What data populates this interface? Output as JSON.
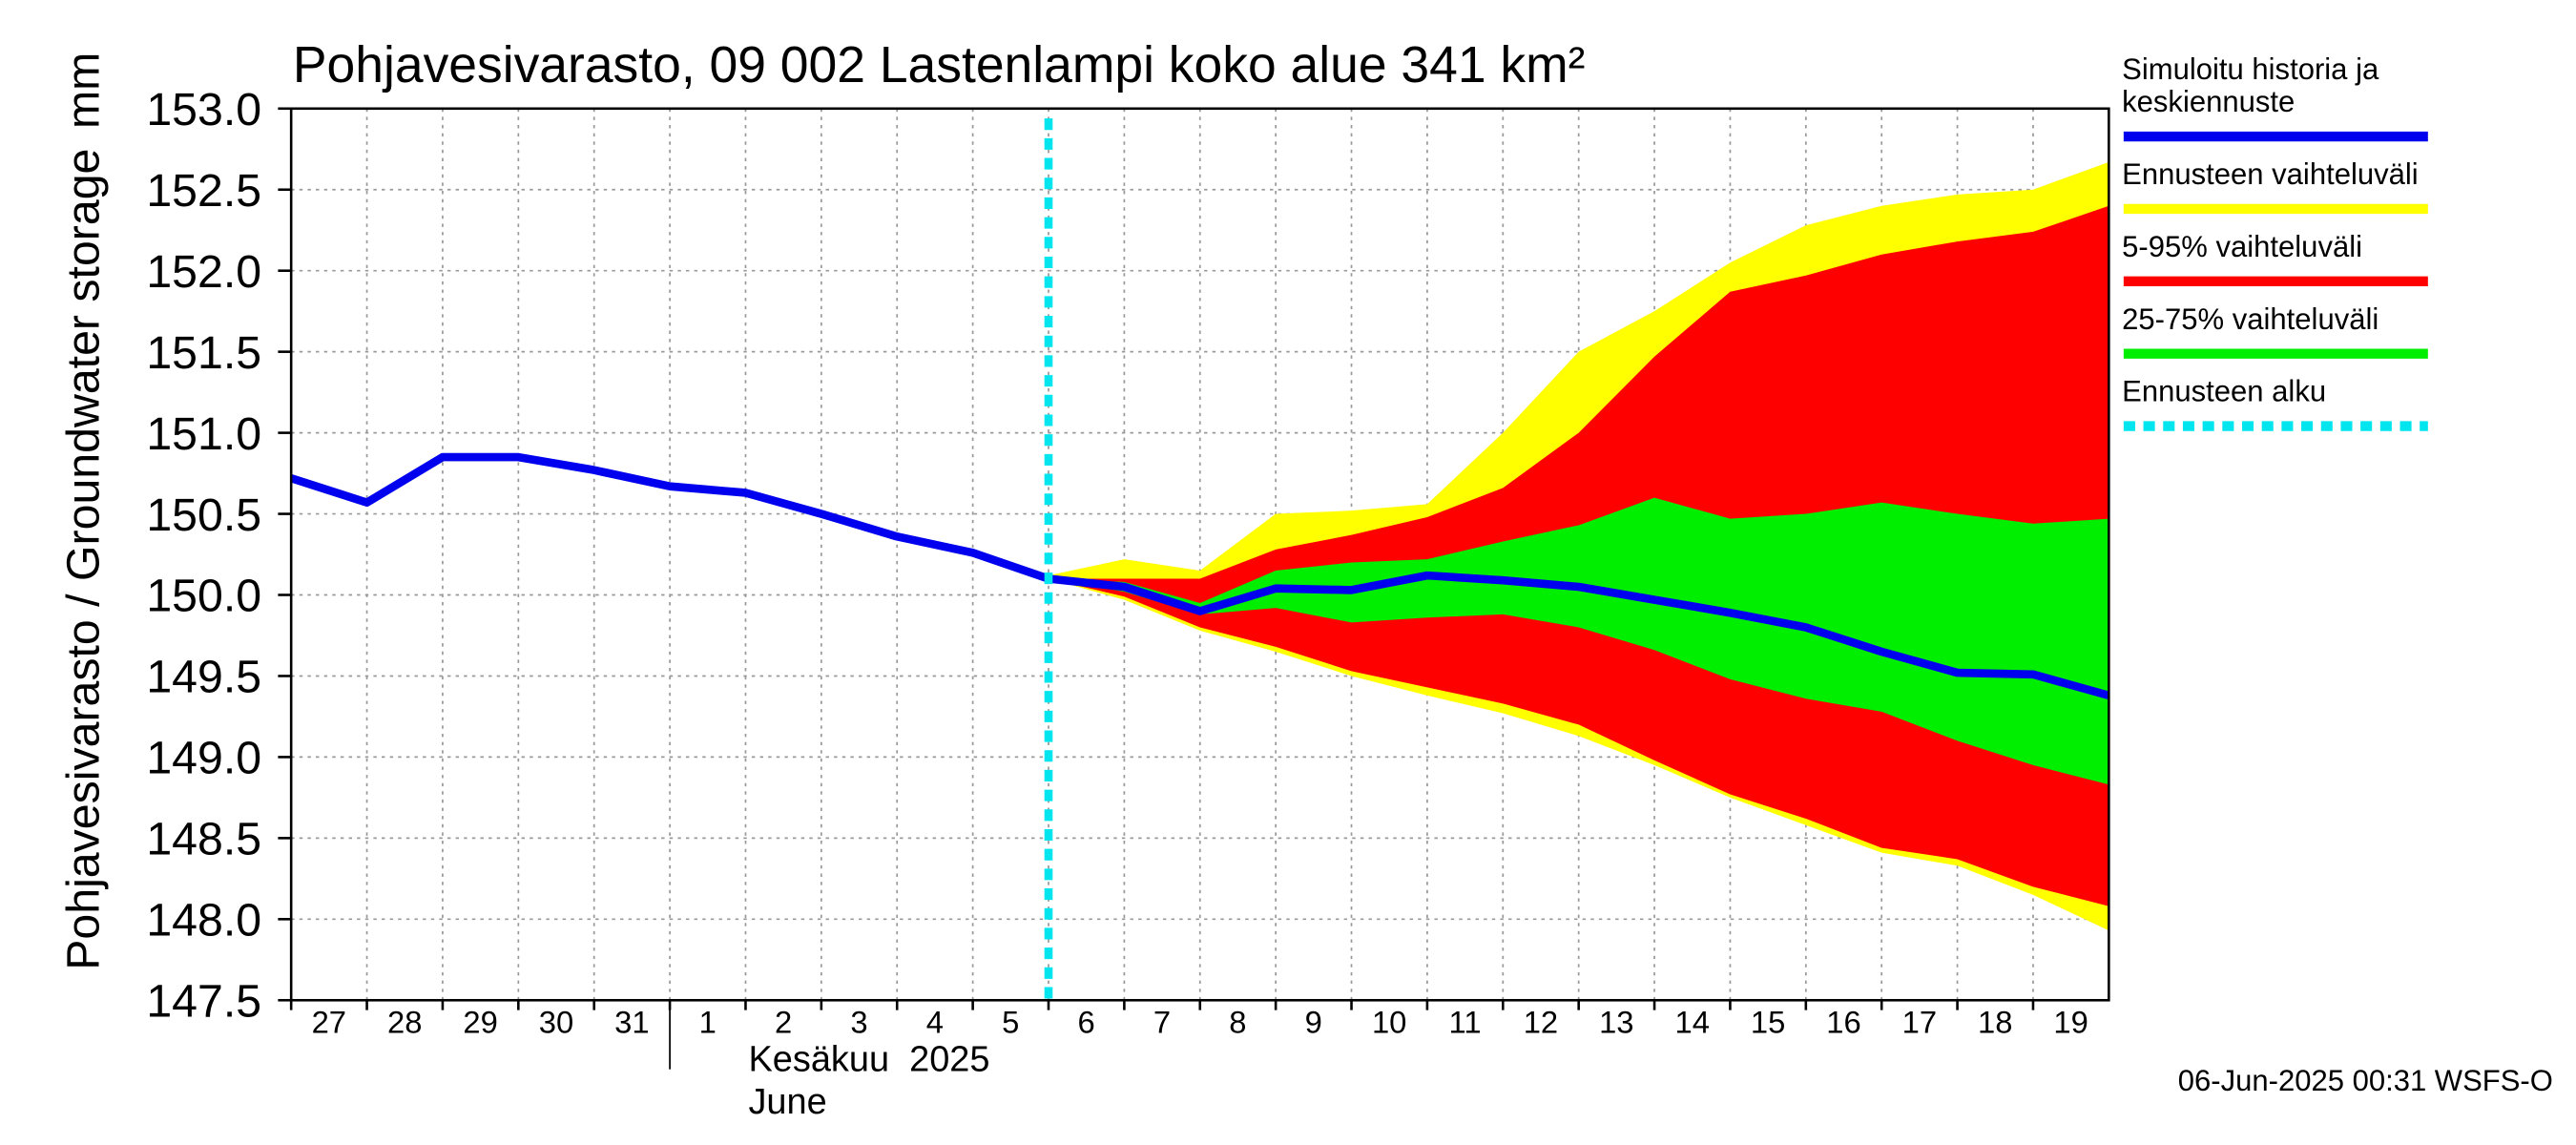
{
  "chart_data": {
    "type": "line",
    "title": "Pohjavesivarasto, 09 002 Lastenlampi koko alue 341 km²",
    "y_label": "Pohjavesivarasto / Groundwater storage",
    "y_unit": "mm",
    "month_label": "Kesäkuu  2025",
    "month_label_en": "June",
    "footer": "06-Jun-2025 00:31 WSFS-O",
    "x": [
      0,
      1,
      2,
      3,
      4,
      5,
      6,
      7,
      8,
      9,
      10,
      11,
      12,
      13,
      14,
      15,
      16,
      17,
      18,
      19,
      20,
      21,
      22,
      23,
      24
    ],
    "xlim": [
      0,
      24
    ],
    "xticks": [
      {
        "value": 0,
        "label": "27"
      },
      {
        "value": 1,
        "label": "28"
      },
      {
        "value": 2,
        "label": "29"
      },
      {
        "value": 3,
        "label": "30"
      },
      {
        "value": 4,
        "label": "31"
      },
      {
        "value": 5,
        "label": "1"
      },
      {
        "value": 6,
        "label": "2"
      },
      {
        "value": 7,
        "label": "3"
      },
      {
        "value": 8,
        "label": "4"
      },
      {
        "value": 9,
        "label": "5"
      },
      {
        "value": 10,
        "label": "6"
      },
      {
        "value": 11,
        "label": "7"
      },
      {
        "value": 12,
        "label": "8"
      },
      {
        "value": 13,
        "label": "9"
      },
      {
        "value": 14,
        "label": "10"
      },
      {
        "value": 15,
        "label": "11"
      },
      {
        "value": 16,
        "label": "12"
      },
      {
        "value": 17,
        "label": "13"
      },
      {
        "value": 18,
        "label": "14"
      },
      {
        "value": 19,
        "label": "15"
      },
      {
        "value": 20,
        "label": "16"
      },
      {
        "value": 21,
        "label": "17"
      },
      {
        "value": 22,
        "label": "18"
      },
      {
        "value": 23,
        "label": "19"
      }
    ],
    "month_start": 5,
    "ylim": [
      147.5,
      153.0
    ],
    "yticks": [
      {
        "value": 147.5,
        "label": "147.5"
      },
      {
        "value": 148,
        "label": "148.0"
      },
      {
        "value": 148.5,
        "label": "148.5"
      },
      {
        "value": 149,
        "label": "149.0"
      },
      {
        "value": 149.5,
        "label": "149.5"
      },
      {
        "value": 150,
        "label": "150.0"
      },
      {
        "value": 150.5,
        "label": "150.5"
      },
      {
        "value": 151,
        "label": "151.0"
      },
      {
        "value": 151.5,
        "label": "151.5"
      },
      {
        "value": 152,
        "label": "152.0"
      },
      {
        "value": 152.5,
        "label": "152.5"
      },
      {
        "value": 153,
        "label": "153.0"
      }
    ],
    "grid": true,
    "bands": [
      {
        "name": "Ennusteen vaihteluväli",
        "color": "#ffff00",
        "upper": [
          null,
          null,
          null,
          null,
          null,
          null,
          null,
          null,
          null,
          null,
          150.12,
          150.22,
          150.15,
          150.5,
          150.52,
          150.56,
          151.0,
          151.5,
          151.75,
          152.05,
          152.28,
          152.4,
          152.47,
          152.5,
          152.67
        ],
        "lower": [
          null,
          null,
          null,
          null,
          null,
          null,
          null,
          null,
          null,
          null,
          150.1,
          149.97,
          149.78,
          149.65,
          149.5,
          149.38,
          149.27,
          149.13,
          148.95,
          148.75,
          148.58,
          148.41,
          148.33,
          148.15,
          147.93
        ]
      },
      {
        "name": "5-95% vaihteluväli",
        "color": "#ff0000",
        "upper": [
          null,
          null,
          null,
          null,
          null,
          null,
          null,
          null,
          null,
          null,
          150.1,
          150.1,
          150.1,
          150.28,
          150.37,
          150.48,
          150.66,
          151.0,
          151.47,
          151.87,
          151.97,
          152.1,
          152.18,
          152.24,
          152.4
        ],
        "lower": [
          null,
          null,
          null,
          null,
          null,
          null,
          null,
          null,
          null,
          null,
          150.1,
          149.99,
          149.8,
          149.68,
          149.53,
          149.43,
          149.33,
          149.2,
          148.98,
          148.77,
          148.62,
          148.44,
          148.37,
          148.2,
          148.08
        ]
      },
      {
        "name": "25-75% vaihteluväli",
        "color": "#00ee00",
        "upper": [
          null,
          null,
          null,
          null,
          null,
          null,
          null,
          null,
          null,
          null,
          150.1,
          150.08,
          149.95,
          150.15,
          150.2,
          150.22,
          150.33,
          150.43,
          150.6,
          150.47,
          150.5,
          150.57,
          150.5,
          150.44,
          150.47
        ],
        "lower": [
          null,
          null,
          null,
          null,
          null,
          null,
          null,
          null,
          null,
          null,
          150.1,
          150.02,
          149.88,
          149.92,
          149.83,
          149.86,
          149.88,
          149.8,
          149.66,
          149.48,
          149.36,
          149.28,
          149.1,
          148.95,
          148.83
        ]
      }
    ],
    "series": [
      {
        "name": "Simuloitu historia ja keskiennuste",
        "color": "#0000ee",
        "values": [
          150.72,
          150.57,
          150.85,
          150.85,
          150.77,
          150.67,
          150.63,
          150.5,
          150.36,
          150.26,
          150.1,
          150.05,
          149.9,
          150.04,
          150.03,
          150.12,
          150.09,
          150.05,
          149.97,
          149.89,
          149.8,
          149.65,
          149.52,
          149.51,
          149.38
        ]
      }
    ],
    "forecast_start": {
      "name": "Ennusteen alku",
      "x": 10,
      "color": "#00e5ee"
    }
  }
}
